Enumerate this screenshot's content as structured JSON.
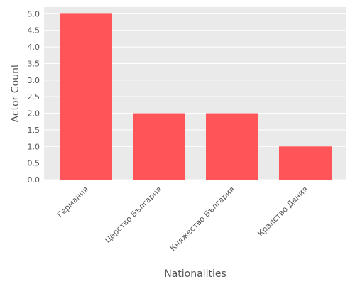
{
  "chart_data": {
    "type": "bar",
    "categories": [
      "Германия",
      "Царство България",
      "Княжество България",
      "Кралство Дания"
    ],
    "values": [
      5,
      2,
      2,
      1
    ],
    "xlabel": "Nationalities",
    "ylabel": "Actor Count",
    "ylim": [
      0,
      5.2
    ],
    "yticks": [
      "0.0",
      "0.5",
      "1.0",
      "1.5",
      "2.0",
      "2.5",
      "3.0",
      "3.5",
      "4.0",
      "4.5",
      "5.0"
    ],
    "grid": true,
    "colors": {
      "bar": "#FF5558",
      "plot_background": "#EAEAEA",
      "grid": "#FFFFFF",
      "text": "#555555"
    }
  }
}
